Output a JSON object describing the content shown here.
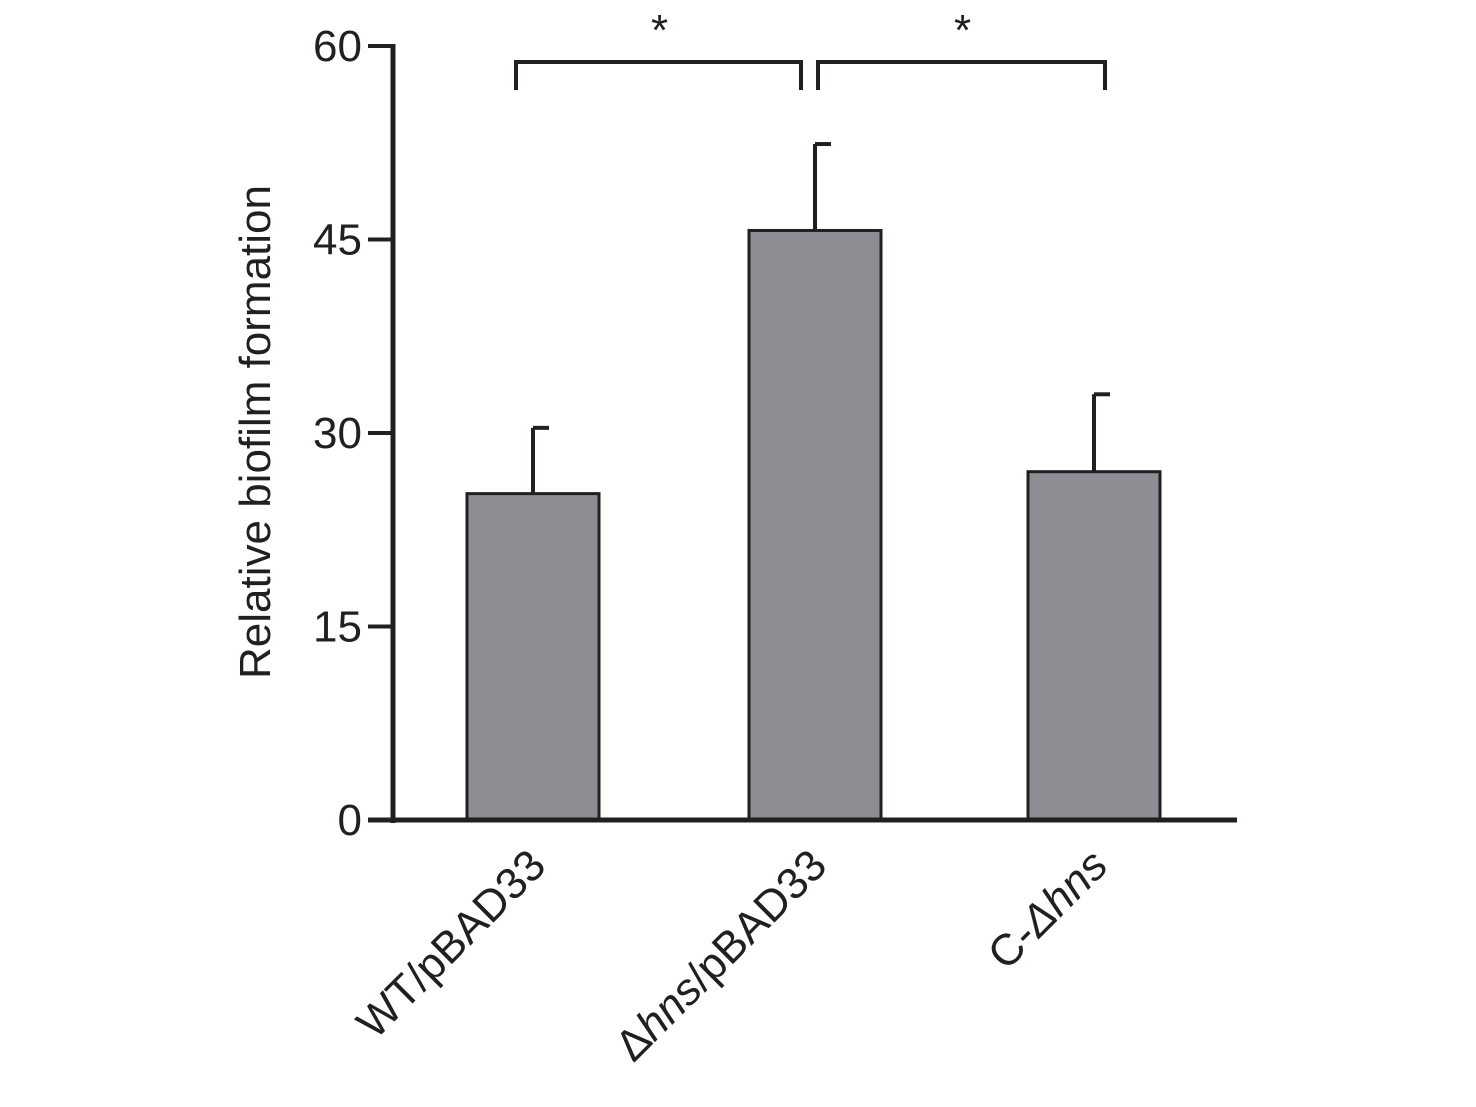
{
  "chart_data": {
    "type": "bar",
    "categories": [
      "WT/pBAD33",
      "Δhns/pBAD33",
      "C-Δhns"
    ],
    "category_labels": [
      {
        "parts": [
          {
            "text": "WT/pBAD33",
            "italic": false
          }
        ]
      },
      {
        "parts": [
          {
            "text": "Δ",
            "italic": false
          },
          {
            "text": "hns",
            "italic": true
          },
          {
            "text": "/pBAD33",
            "italic": false
          }
        ]
      },
      {
        "parts": [
          {
            "text": "C-",
            "italic": false
          },
          {
            "text": "Δhns",
            "italic": true
          }
        ]
      }
    ],
    "values": [
      25.3,
      45.7,
      27.0
    ],
    "errors": [
      5.1,
      6.7,
      6.0
    ],
    "title": "",
    "xlabel": "",
    "ylabel": "Relative biofilm formation",
    "ylim": [
      0,
      60
    ],
    "yticks": [
      0,
      15,
      30,
      45,
      60
    ],
    "grid": false,
    "legend": "none",
    "bar_color": "#8d8e93",
    "bar_edge_color": "#231f20",
    "significance": [
      {
        "from": 0,
        "to": 1,
        "label": "*"
      },
      {
        "from": 1,
        "to": 2,
        "label": "*"
      }
    ]
  }
}
